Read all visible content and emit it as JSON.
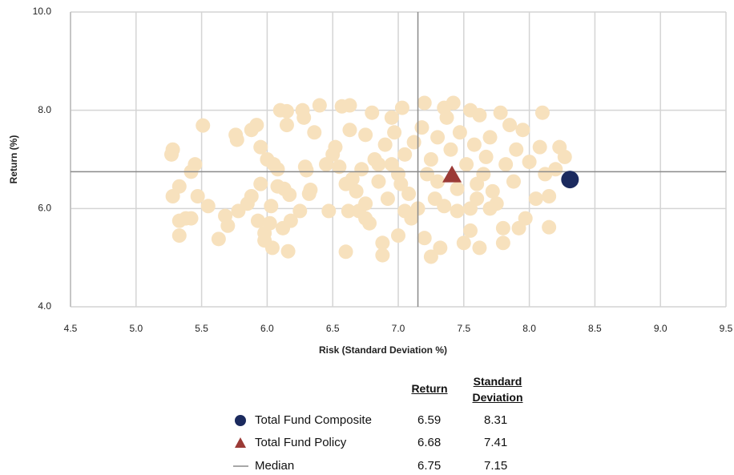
{
  "chart_data": {
    "type": "scatter",
    "x_label": "Risk (Standard Deviation %)",
    "y_label": "Return (%)",
    "xlim": [
      4.5,
      9.5
    ],
    "xticks": [
      4.5,
      {
        "value": 5,
        "label": "5.0"
      },
      5.5,
      {
        "value": 6,
        "label": "6.0"
      },
      6.5,
      {
        "value": 7,
        "label": "7.0"
      },
      7.5,
      {
        "value": 8,
        "label": "8.0"
      },
      8.5,
      {
        "value": 9,
        "label": "9.0"
      },
      9.5
    ],
    "ylim": [
      4,
      10
    ],
    "yticks": [
      {
        "value": 4,
        "label": "4.0"
      },
      {
        "value": 6,
        "label": "6.0"
      },
      {
        "value": 8,
        "label": "8.0"
      },
      {
        "value": 10,
        "label": "10.0"
      }
    ],
    "grid": true,
    "legend_headers": [
      "Return",
      "Standard Deviation"
    ],
    "series": [
      {
        "color": "#f7e1bd",
        "marker": "circle",
        "x": [
          5.27,
          5.28,
          5.28,
          5.33,
          5.33,
          5.33,
          5.38,
          5.42,
          5.42,
          5.45,
          5.47,
          5.51,
          5.55,
          5.63,
          5.68,
          5.7,
          5.76,
          5.77,
          5.78,
          5.85,
          5.88,
          5.88,
          5.92,
          5.93,
          5.95,
          5.95,
          5.98,
          5.98,
          6.0,
          6.02,
          6.03,
          6.04,
          6.05,
          6.08,
          6.08,
          6.1,
          6.12,
          6.13,
          6.15,
          6.15,
          6.16,
          6.17,
          6.18,
          6.25,
          6.27,
          6.28,
          6.29,
          6.3,
          6.32,
          6.33,
          6.36,
          6.4,
          6.45,
          6.47,
          6.5,
          6.52,
          6.55,
          6.57,
          6.6,
          6.62,
          6.63,
          6.63,
          6.65,
          6.68,
          6.7,
          6.72,
          6.75,
          6.75,
          6.78,
          6.8,
          6.82,
          6.85,
          6.88,
          6.88,
          6.9,
          6.92,
          6.95,
          6.95,
          6.97,
          7.0,
          7.02,
          7.03,
          7.05,
          7.08,
          7.1,
          7.12,
          7.15,
          7.18,
          7.2,
          7.2,
          7.22,
          7.25,
          7.25,
          7.28,
          7.3,
          7.32,
          7.35,
          7.35,
          7.37,
          7.4,
          7.42,
          7.45,
          7.47,
          7.5,
          7.52,
          7.55,
          7.55,
          7.58,
          7.6,
          7.62,
          7.62,
          7.65,
          7.67,
          7.7,
          7.72,
          7.75,
          7.78,
          7.8,
          7.8,
          7.82,
          7.85,
          7.88,
          7.9,
          7.92,
          7.95,
          7.97,
          8.0,
          8.05,
          8.08,
          8.1,
          8.12,
          8.15,
          8.15,
          8.2,
          8.23,
          8.27,
          7.55,
          7.45,
          6.85,
          7.0,
          6.6,
          7.6,
          7.3,
          6.75,
          7.05,
          7.7
        ],
        "values": [
          7.1,
          7.2,
          6.25,
          6.45,
          5.75,
          5.45,
          5.8,
          5.8,
          6.75,
          6.9,
          6.25,
          7.69,
          6.05,
          5.38,
          5.85,
          5.65,
          7.5,
          7.4,
          5.95,
          6.1,
          6.25,
          7.6,
          7.7,
          5.75,
          7.25,
          6.5,
          5.5,
          5.35,
          7.0,
          5.7,
          6.05,
          5.2,
          6.9,
          6.8,
          6.45,
          8.0,
          5.6,
          6.4,
          7.7,
          7.98,
          5.13,
          6.28,
          5.75,
          5.95,
          8.0,
          7.85,
          6.85,
          6.78,
          6.3,
          6.38,
          7.55,
          8.1,
          6.9,
          5.95,
          7.1,
          7.25,
          6.85,
          8.08,
          5.12,
          5.95,
          8.1,
          7.6,
          6.6,
          6.35,
          5.95,
          6.8,
          7.5,
          5.8,
          5.7,
          7.95,
          7.0,
          6.55,
          5.3,
          5.05,
          7.3,
          6.2,
          7.85,
          6.9,
          7.55,
          5.45,
          6.5,
          8.05,
          7.1,
          6.3,
          5.8,
          7.35,
          6.0,
          7.65,
          8.15,
          5.4,
          6.7,
          5.02,
          7.0,
          6.2,
          7.45,
          5.2,
          8.05,
          6.05,
          7.85,
          7.2,
          8.15,
          6.4,
          7.55,
          5.3,
          6.9,
          8.0,
          5.55,
          7.3,
          6.2,
          5.2,
          7.9,
          6.7,
          7.05,
          7.45,
          6.35,
          6.1,
          7.95,
          5.3,
          5.6,
          6.9,
          7.7,
          6.55,
          7.2,
          5.6,
          7.6,
          5.8,
          6.95,
          6.2,
          7.25,
          7.95,
          6.7,
          6.25,
          5.62,
          6.8,
          7.25,
          7.05,
          6.0,
          5.95,
          6.9,
          6.7,
          6.5,
          6.5,
          6.55,
          6.1,
          5.95,
          6.0
        ]
      },
      {
        "name": "Total Fund Composite",
        "color": "#1b2a5e",
        "marker": "circle",
        "x": [
          8.31
        ],
        "values": [
          6.59
        ]
      },
      {
        "name": "Total Fund Policy",
        "color": "#9b3a36",
        "marker": "triangle",
        "x": [
          7.41
        ],
        "values": [
          6.68
        ]
      }
    ],
    "median": {
      "name": "Median",
      "color": "#8a8a8a",
      "x": 7.15,
      "y": 6.75
    }
  }
}
